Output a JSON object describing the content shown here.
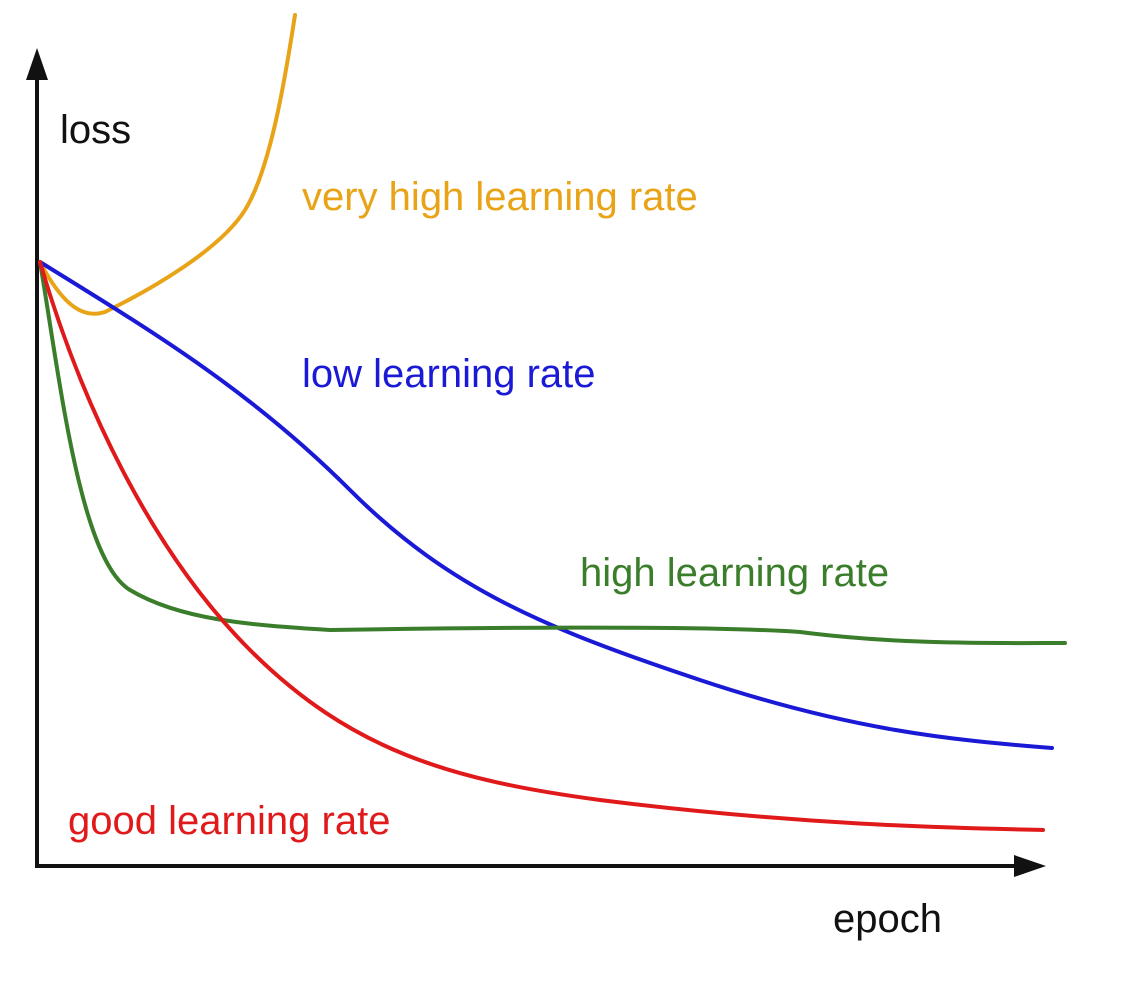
{
  "axes": {
    "y_label": "loss",
    "x_label": "epoch"
  },
  "curves": [
    {
      "label": "very high learning rate"
    },
    {
      "label": "low learning rate"
    },
    {
      "label": "high learning rate"
    },
    {
      "label": "good learning rate"
    }
  ]
}
